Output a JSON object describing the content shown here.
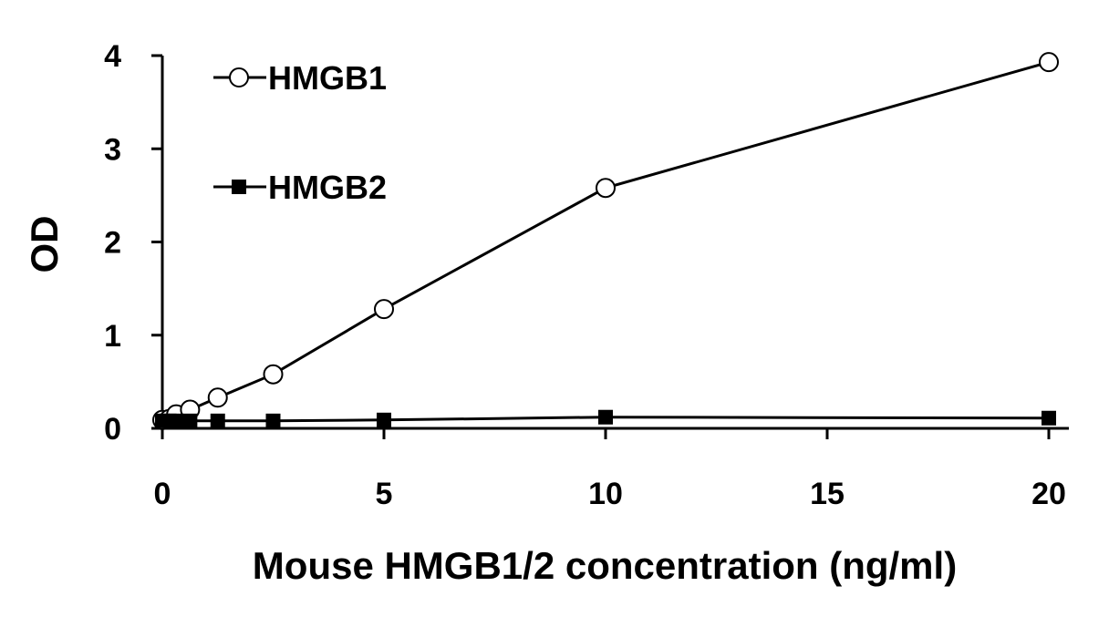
{
  "chart_data": {
    "type": "line",
    "title": "",
    "xlabel": "Mouse HMGB1/2 concentration (ng/ml)",
    "ylabel": "OD",
    "xlim": [
      0,
      20
    ],
    "ylim": [
      0,
      4
    ],
    "x_ticks": [
      0,
      5,
      10,
      15,
      20
    ],
    "y_ticks": [
      0,
      1,
      2,
      3,
      4
    ],
    "grid": false,
    "legend_position": "top-left",
    "series": [
      {
        "name": "HMGB1",
        "marker": "open-circle",
        "x": [
          0,
          0.156,
          0.3125,
          0.625,
          1.25,
          2.5,
          5,
          10,
          20
        ],
        "y": [
          0.09,
          0.1,
          0.15,
          0.2,
          0.33,
          0.58,
          1.28,
          2.58,
          3.93
        ]
      },
      {
        "name": "HMGB2",
        "marker": "filled-square",
        "x": [
          0,
          0.156,
          0.3125,
          0.625,
          1.25,
          2.5,
          5,
          10,
          20
        ],
        "y": [
          0.08,
          0.08,
          0.08,
          0.08,
          0.08,
          0.08,
          0.09,
          0.12,
          0.11
        ]
      }
    ]
  }
}
